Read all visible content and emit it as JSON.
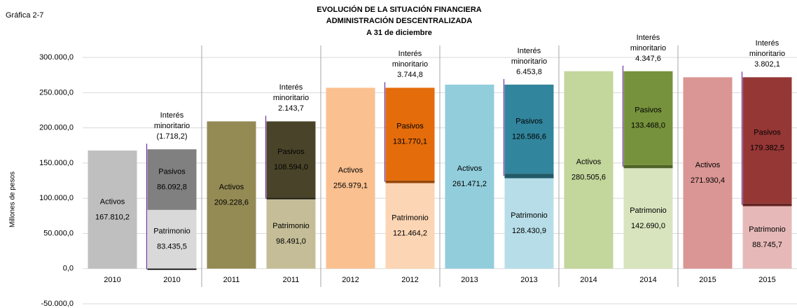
{
  "chart_data": {
    "type": "bar",
    "figure_label": "Gráfica 2-7",
    "title": [
      "EVOLUCIÓN DE LA SITUACIÓN FINANCIERA",
      "ADMINISTRACIÓN DESCENTRALIZADA"
    ],
    "subtitle": "A 31 de diciembre",
    "y_label": "Millones de pesos",
    "categories": [
      "2010",
      "2010",
      "2011",
      "2011",
      "2012",
      "2012",
      "2013",
      "2013",
      "2014",
      "2014",
      "2015",
      "2015"
    ],
    "ylim": [
      -50000,
      325000
    ],
    "yticks": [
      {
        "value": -50000,
        "label": "-50.000,0"
      },
      {
        "value": 0,
        "label": "0,0"
      },
      {
        "value": 50000,
        "label": "50.000,0"
      },
      {
        "value": 100000,
        "label": "100.000,0"
      },
      {
        "value": 150000,
        "label": "150.000,0"
      },
      {
        "value": 200000,
        "label": "200.000,0"
      },
      {
        "value": 250000,
        "label": "250.000,0"
      },
      {
        "value": 300000,
        "label": "300.000,0"
      }
    ],
    "grid": true,
    "series": [
      {
        "name": "Activos",
        "values": [
          167810.2,
          null,
          209228.6,
          null,
          256979.1,
          null,
          261471.2,
          null,
          280505.6,
          null,
          271930.4,
          null
        ],
        "value_labels": [
          "167.810,2",
          null,
          "209.228,6",
          null,
          "256.979,1",
          null,
          "261.471,2",
          null,
          "280.505,6",
          null,
          "271.930,4",
          null
        ],
        "colors": [
          "#bfbfbf",
          null,
          "#948a54",
          null,
          "#fac090",
          null,
          "#92cddc",
          null,
          "#c3d69b",
          null,
          "#da9694",
          null
        ]
      },
      {
        "name": "Patrimonio",
        "values": [
          null,
          83435.5,
          null,
          98491.0,
          null,
          121464.2,
          null,
          128430.9,
          null,
          142690.0,
          null,
          88745.7
        ],
        "value_labels": [
          null,
          "83.435,5",
          null,
          "98.491,0",
          null,
          "121.464,2",
          null,
          "128.430,9",
          null,
          "142.690,0",
          null,
          "88.745,7"
        ],
        "colors": [
          null,
          "#d9d9d9",
          null,
          "#c4bd97",
          null,
          "#fcd5b4",
          null,
          "#b7dee8",
          null,
          "#d7e4bd",
          null,
          "#e6b9b8"
        ]
      },
      {
        "name": "Interés minoritario",
        "values": [
          null,
          -1718.2,
          null,
          2143.7,
          null,
          3744.8,
          null,
          6453.8,
          null,
          4347.6,
          null,
          3802.1
        ],
        "value_labels": [
          null,
          "(1.718,2)",
          null,
          "2.143,7",
          null,
          "3.744,8",
          null,
          "6.453,8",
          null,
          "4.347,6",
          null,
          "3.802,1"
        ],
        "colors": [
          null,
          "#000000",
          null,
          "#1d1b10",
          null,
          "#984807",
          null,
          "#215968",
          null,
          "#4f6228",
          null,
          "#632523"
        ]
      },
      {
        "name": "Pasivos",
        "values": [
          null,
          86092.8,
          null,
          108594.0,
          null,
          131770.1,
          null,
          126586.6,
          null,
          133468.0,
          null,
          179382.5
        ],
        "value_labels": [
          null,
          "86.092,8",
          null,
          "108.594,0",
          null,
          "131.770,1",
          null,
          "126.586,6",
          null,
          "133.468,0",
          null,
          "179.382,5"
        ],
        "colors": [
          null,
          "#808080",
          null,
          "#494429",
          null,
          "#e46c0a",
          null,
          "#31859c",
          null,
          "#76923c",
          null,
          "#953735"
        ]
      }
    ]
  }
}
